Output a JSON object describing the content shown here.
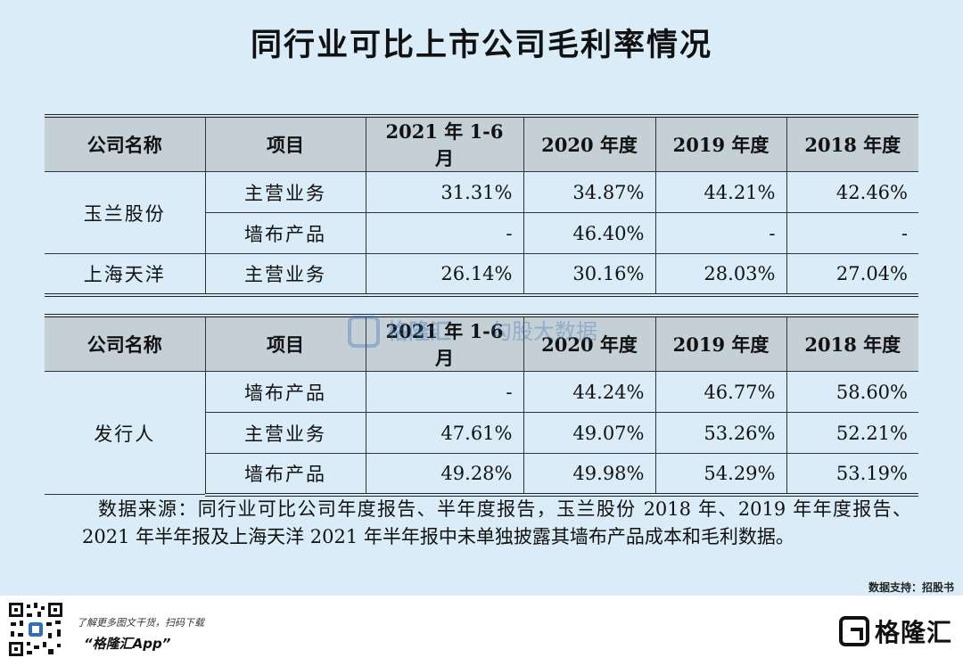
{
  "title": "同行业可比上市公司毛利率情况",
  "headers": [
    "公司名称",
    "项目",
    "2021 年 1-6 月",
    "2020 年度",
    "2019 年度",
    "2018 年度"
  ],
  "table1": {
    "rows": [
      {
        "company": "玉兰股份",
        "item": "主营业务",
        "values": [
          "31.31%",
          "34.87%",
          "44.21%",
          "42.46%"
        ]
      },
      {
        "company": "",
        "item": "墙布产品",
        "values": [
          "-",
          "46.40%",
          "-",
          "-"
        ]
      },
      {
        "company": "上海天洋",
        "item": "主营业务",
        "values": [
          "26.14%",
          "30.16%",
          "28.03%",
          "27.04%"
        ]
      }
    ]
  },
  "table2": {
    "rows": [
      {
        "company": "",
        "item": "墙布产品",
        "values": [
          "-",
          "44.24%",
          "46.77%",
          "58.60%"
        ]
      },
      {
        "company": "发行人",
        "item": "主营业务",
        "values": [
          "47.61%",
          "49.07%",
          "53.26%",
          "52.21%"
        ]
      },
      {
        "company": "",
        "item": "墙布产品",
        "values": [
          "49.28%",
          "49.98%",
          "54.29%",
          "53.19%"
        ]
      }
    ]
  },
  "source_note": "数据来源：同行业可比公司年度报告、半年度报告，玉兰股份 2018 年、2019 年年度报告、2021 年半年报及上海天洋 2021 年半年报中未单独披露其墙布产品成本和毛利数据。",
  "watermark": {
    "brand": "格隆汇",
    "tagline": "勾股大数据"
  },
  "data_support": "数据支持：招股书",
  "footer": {
    "promo_line1": "了解更多图文干货，扫码下载",
    "promo_line2": "“格隆汇App”",
    "brand_name": "格隆汇"
  },
  "colors": {
    "background": "#d9ecf7",
    "header_fill": "#c5cfd6",
    "watermark": "#2f6fb3"
  }
}
